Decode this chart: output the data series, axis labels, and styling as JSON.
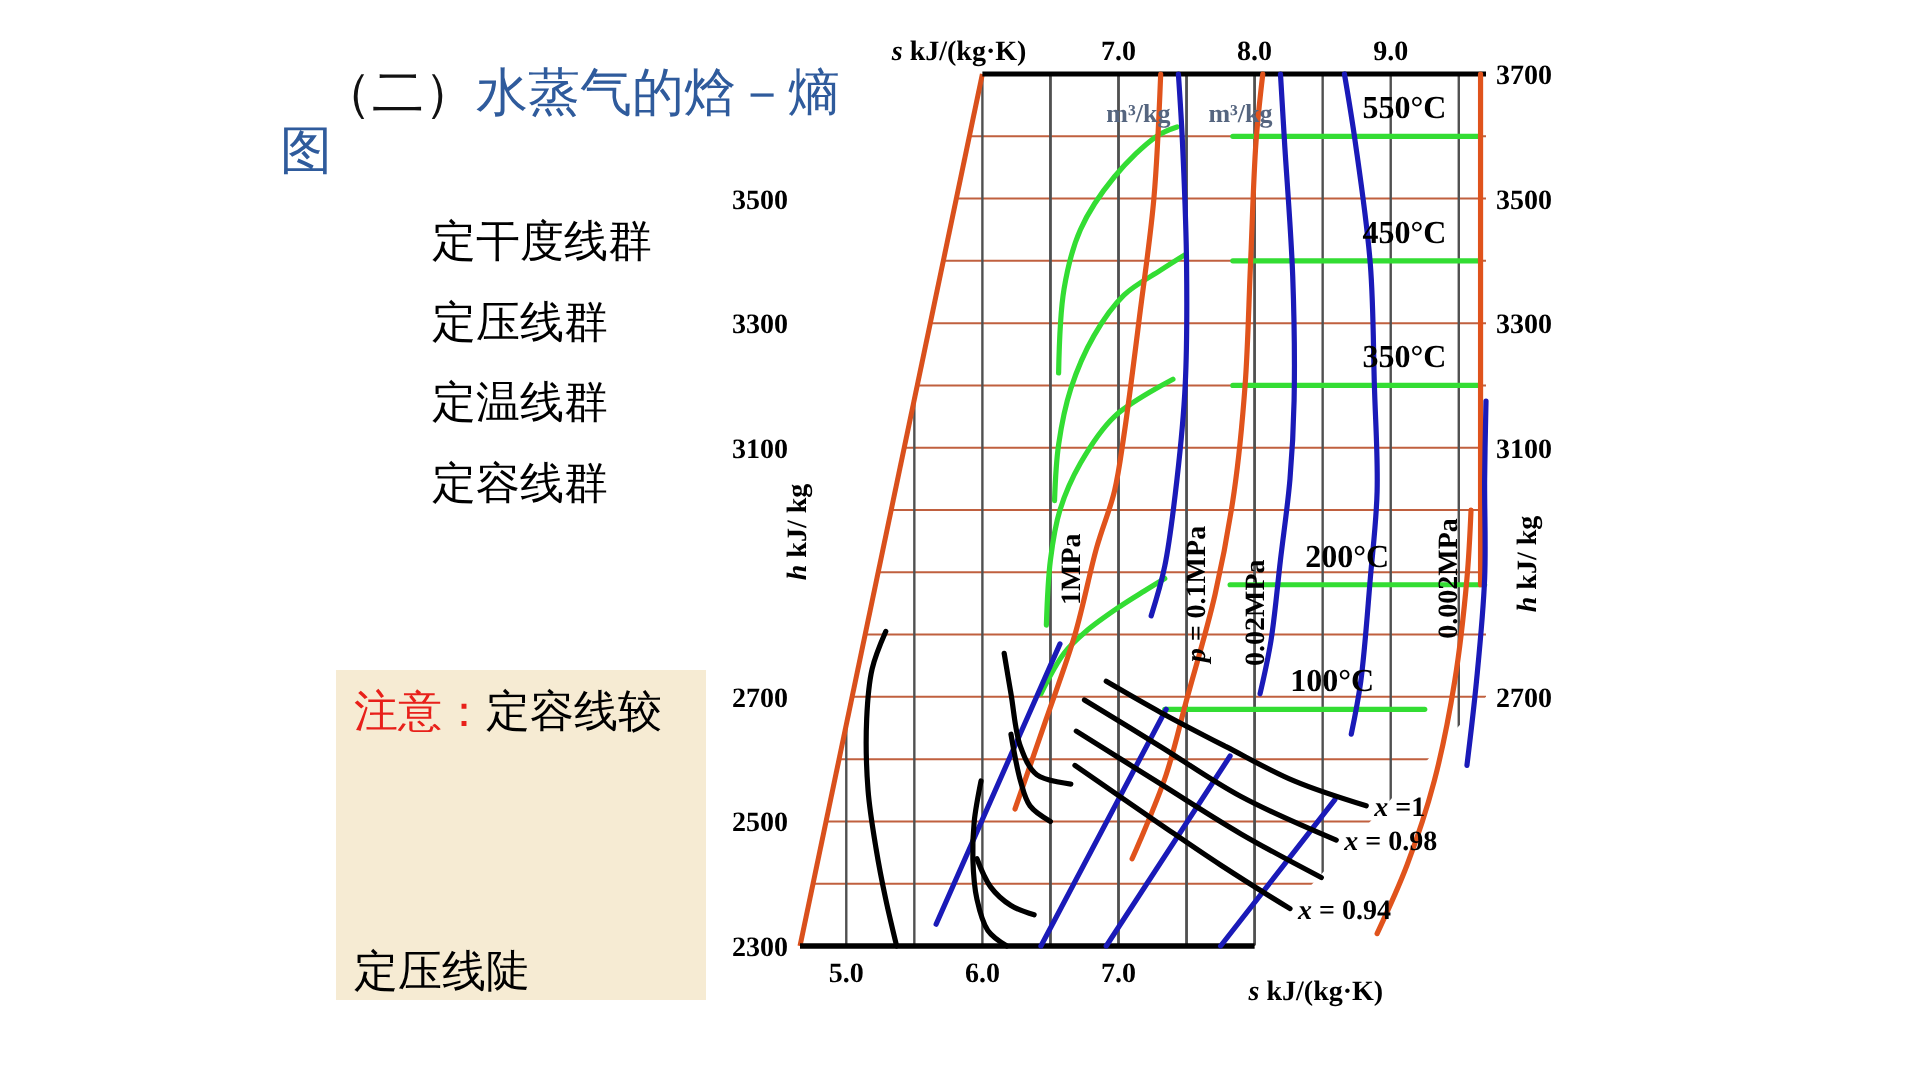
{
  "chart_data": {
    "type": "line",
    "title": "（二）水蒸气的焓－熵图",
    "xlabel": "s kJ/(kg·K)",
    "x2label": "s kJ/(kg·K)",
    "ylabel": "h kJ/ kg",
    "y2label": "h kJ/ kg",
    "xlim": [
      4.66,
      9.7
    ],
    "x2lim": [
      6.0,
      9.7
    ],
    "xticks": [
      {
        "value": 5,
        "label": "5.0"
      },
      {
        "value": 5.5,
        "label": null
      },
      {
        "value": 6,
        "label": "6.0"
      },
      {
        "value": 6.5,
        "label": null
      },
      {
        "value": 7,
        "label": "7.0"
      },
      {
        "value": 7.5,
        "label": null
      },
      {
        "value": 8,
        "label": null
      }
    ],
    "x2ticks": [
      {
        "value": 6.5,
        "label": null
      },
      {
        "value": 7,
        "label": "7.0"
      },
      {
        "value": 7.5,
        "label": null
      },
      {
        "value": 8,
        "label": "8.0"
      },
      {
        "value": 8.5,
        "label": null
      },
      {
        "value": 9,
        "label": "9.0"
      },
      {
        "value": 9.5,
        "label": null
      }
    ],
    "ylim": [
      2300,
      3700
    ],
    "yticks": [
      2300,
      {
        "value": 2400,
        "label": null
      },
      2500,
      {
        "value": 2600,
        "label": null
      },
      2700,
      {
        "value": 2800,
        "label": null
      },
      {
        "value": 2900,
        "label": null
      },
      {
        "value": 3000,
        "label": null
      },
      3100,
      {
        "value": 3200,
        "label": null
      },
      3300,
      {
        "value": 3400,
        "label": null
      },
      3500,
      {
        "value": 3600,
        "label": null
      }
    ],
    "y2lim": [
      2300,
      3700
    ],
    "y2ticks": [
      2700,
      3100,
      3300,
      3500,
      3700
    ],
    "grid": true,
    "series": [
      {
        "color": "#33dd33",
        "x": [
          7.43,
          7.28,
          6.97,
          6.72,
          6.6,
          6.56
        ],
        "values": [
          3615,
          3600,
          3535,
          3450,
          3355,
          3220
        ]
      },
      {
        "color": "#33dd33",
        "x": [
          7.49,
          7.31,
          7.04,
          6.82,
          6.65,
          6.56,
          6.53
        ],
        "values": [
          3410,
          3385,
          3345,
          3280,
          3195,
          3105,
          3015
        ]
      },
      {
        "color": "#33dd33",
        "x": [
          7.4,
          6.97,
          6.72,
          6.57,
          6.5,
          6.47
        ],
        "values": [
          3210,
          3150,
          3075,
          3000,
          2920,
          2815
        ]
      },
      {
        "color": "#33dd33",
        "x": [
          7.34,
          7.19,
          7.01,
          6.76,
          6.6,
          6.43
        ],
        "values": [
          2890,
          2870,
          2845,
          2805,
          2770,
          2705
        ]
      },
      {
        "color": "#33dd33",
        "x": [
          7.84,
          9.66
        ],
        "values": [
          3600,
          3600
        ]
      },
      {
        "color": "#33dd33",
        "x": [
          7.84,
          9.66
        ],
        "values": [
          3400,
          3400
        ]
      },
      {
        "color": "#33dd33",
        "x": [
          7.84,
          9.66
        ],
        "values": [
          3200,
          3200
        ]
      },
      {
        "color": "#33dd33",
        "x": [
          7.82,
          9.69
        ],
        "values": [
          2880,
          2880
        ]
      },
      {
        "color": "#33dd33",
        "x": [
          7.34,
          9.25
        ],
        "values": [
          2680,
          2680
        ]
      },
      {
        "color": "#e0531c",
        "x": [
          7.31,
          7.26,
          7.16,
          7.04,
          6.97,
          6.84,
          6.68,
          6.47,
          6.24
        ],
        "values": [
          3700,
          3500,
          3320,
          3120,
          3030,
          2940,
          2800,
          2665,
          2520
        ]
      },
      {
        "color": "#e0531c",
        "x": [
          8.06,
          8.01,
          7.97,
          7.93,
          7.85,
          7.71,
          7.5,
          7.35,
          7.16,
          7.1
        ],
        "values": [
          3700,
          3590,
          3395,
          3200,
          3030,
          2865,
          2695,
          2575,
          2470,
          2440
        ]
      },
      {
        "color": "#e0531c",
        "x": [
          9.59,
          9.56,
          9.47,
          9.32,
          9.12,
          8.9
        ],
        "values": [
          3000,
          2890,
          2725,
          2565,
          2430,
          2320
        ]
      },
      {
        "color": "#e0531c",
        "x": [
          9.66,
          9.66
        ],
        "values": [
          3700,
          2880
        ]
      },
      {
        "color": "#1a1ab8",
        "x": [
          7.44,
          7.47,
          7.5,
          7.49,
          7.43,
          7.34,
          7.24
        ],
        "values": [
          3700,
          3590,
          3395,
          3200,
          3050,
          2910,
          2830
        ]
      },
      {
        "color": "#1a1ab8",
        "x": [
          8.19,
          8.22,
          8.28,
          8.29,
          8.26,
          8.19,
          8.12,
          8.04
        ],
        "values": [
          3700,
          3590,
          3375,
          3175,
          3050,
          2920,
          2790,
          2705
        ]
      },
      {
        "color": "#1a1ab8",
        "x": [
          8.66,
          8.74,
          8.85,
          8.88,
          8.9,
          8.85,
          8.78,
          8.71
        ],
        "values": [
          3700,
          3590,
          3395,
          3200,
          3030,
          2890,
          2725,
          2640
        ]
      },
      {
        "color": "#1a1ab8",
        "x": [
          9.7,
          9.69,
          9.69,
          9.63,
          9.56
        ],
        "values": [
          3175,
          3050,
          2890,
          2725,
          2590
        ]
      },
      {
        "color": "#1a1ab8",
        "x": [
          5.66,
          6.57
        ],
        "values": [
          2335,
          2785
        ]
      },
      {
        "color": "#1a1ab8",
        "x": [
          6.43,
          7.35
        ],
        "values": [
          2300,
          2680
        ]
      },
      {
        "color": "#1a1ab8",
        "x": [
          6.91,
          7.82
        ],
        "values": [
          2300,
          2605
        ]
      },
      {
        "color": "#1a1ab8",
        "x": [
          7.75,
          8.59
        ],
        "values": [
          2300,
          2535
        ]
      },
      {
        "color": "#000000",
        "x": [
          5.29,
          5.19,
          5.15,
          5.16,
          5.22,
          5.29,
          5.37
        ],
        "values": [
          2805,
          2745,
          2665,
          2550,
          2455,
          2375,
          2300
        ]
      },
      {
        "color": "#000000",
        "x": [
          5.99,
          5.94,
          5.93,
          5.96,
          6.04,
          6.18
        ],
        "values": [
          2565,
          2500,
          2440,
          2375,
          2325,
          2300
        ]
      },
      {
        "color": "#000000",
        "x": [
          5.96,
          6.06,
          6.21,
          6.38
        ],
        "values": [
          2440,
          2395,
          2365,
          2350
        ]
      },
      {
        "color": "#000000",
        "x": [
          6.16,
          6.21,
          6.28,
          6.4,
          6.65
        ],
        "values": [
          2770,
          2705,
          2620,
          2575,
          2560
        ]
      },
      {
        "color": "#000000",
        "x": [
          6.21,
          6.28,
          6.35,
          6.5
        ],
        "values": [
          2640,
          2565,
          2525,
          2500
        ]
      },
      {
        "color": "#000000",
        "x": [
          6.91,
          7.31,
          7.79,
          8.29,
          8.82
        ],
        "values": [
          2725,
          2675,
          2620,
          2565,
          2525
        ]
      },
      {
        "color": "#000000",
        "x": [
          6.75,
          7.31,
          7.9,
          8.6
        ],
        "values": [
          2695,
          2620,
          2540,
          2470
        ]
      },
      {
        "color": "#000000",
        "x": [
          6.69,
          7.31,
          7.9,
          8.49
        ],
        "values": [
          2645,
          2560,
          2480,
          2410
        ]
      },
      {
        "color": "#000000",
        "x": [
          6.68,
          7.31,
          7.75,
          8.26
        ],
        "values": [
          2590,
          2495,
          2430,
          2360
        ]
      }
    ],
    "annotations": [
      "定干度线群",
      "定压线群",
      "定温线群",
      "定容线群",
      "注意：定容线较",
      "定压线陡",
      {
        "text": "550°C",
        "x": 9.1,
        "y": 3600
      },
      {
        "text": "450°C",
        "x": 9.1,
        "y": 3400
      },
      {
        "text": "350°C",
        "x": 9.1,
        "y": 3200
      },
      {
        "text": "200°C",
        "x": 8.68,
        "y": 2880
      },
      {
        "text": "100°C",
        "x": 8.57,
        "y": 2680
      },
      {
        "text": "1MPa",
        "x": 6.79,
        "y": 2905
      },
      {
        "text": "p = 0.1MPa",
        "x": 7.71,
        "y": 2865
      },
      {
        "text": "0.02MPa",
        "x": 8.14,
        "y": 2835
      },
      {
        "text": "0.002MPa",
        "x": 9.56,
        "y": 2890
      },
      {
        "text": "x =1",
        "x": 8.82,
        "y": 2525
      },
      {
        "text": "x = 0.98",
        "x": 8.6,
        "y": 2470
      },
      {
        "text": "x = 0.94",
        "x": 8.26,
        "y": 2360
      },
      {
        "text": "m³/kg",
        "x": 7.44,
        "y": 3700
      },
      {
        "text": "m³/kg",
        "x": 8.19,
        "y": 3700
      }
    ]
  }
}
